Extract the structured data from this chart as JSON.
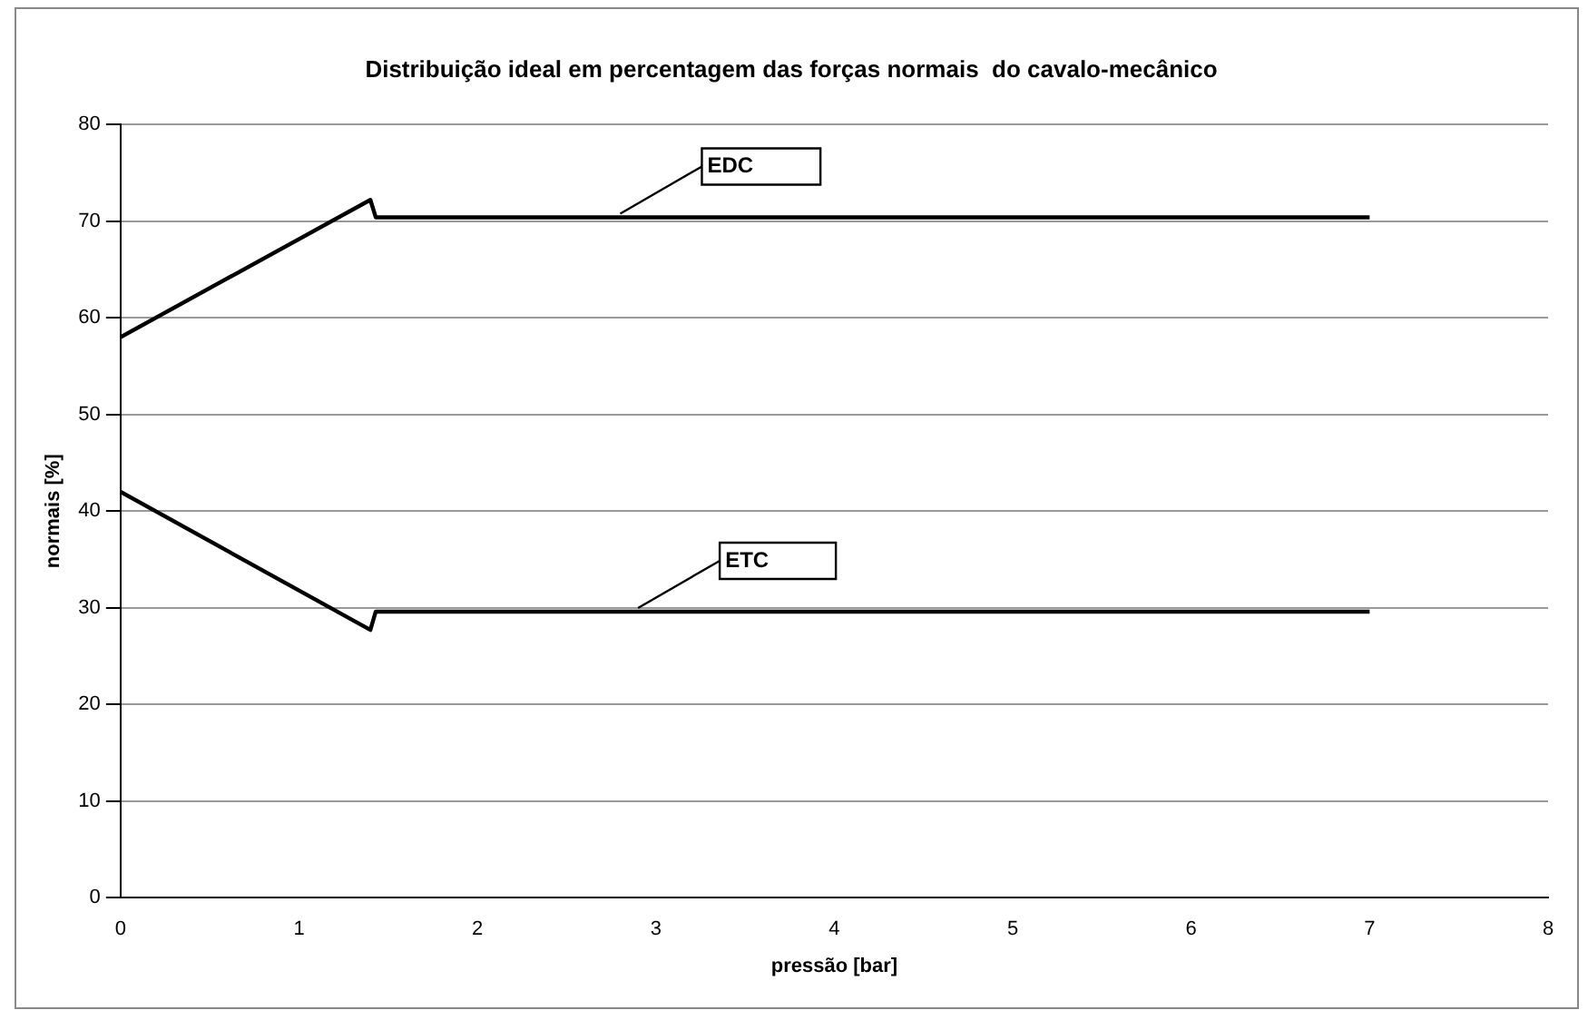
{
  "chart_data": {
    "type": "line",
    "title": "Distribuição ideal em percentagem das forças normais  do cavalo-mecânico",
    "xlabel": "pressão [bar]",
    "ylabel": "normais [%]",
    "series": [
      {
        "color": "#000000",
        "x": [
          0,
          1.4,
          1.43,
          7
        ],
        "values": [
          58,
          72.2,
          70.4,
          70.4
        ]
      },
      {
        "color": "#000000",
        "x": [
          0,
          1.4,
          1.43,
          7
        ],
        "values": [
          42,
          27.7,
          29.6,
          29.6
        ]
      }
    ],
    "annotations": [
      {
        "text": "EDC",
        "x": 2.8,
        "y": 70.4
      },
      {
        "text": "ETC",
        "x": 2.9,
        "y": 29.6
      }
    ],
    "xlim": [
      0,
      8
    ],
    "xticks": [
      0,
      1,
      2,
      3,
      4,
      5,
      6,
      7,
      8
    ],
    "ylim": [
      0,
      80
    ],
    "yticks": [
      0,
      10,
      20,
      30,
      40,
      50,
      60,
      70,
      80
    ],
    "grid": "y",
    "marker": "none",
    "line_style": "solid"
  }
}
